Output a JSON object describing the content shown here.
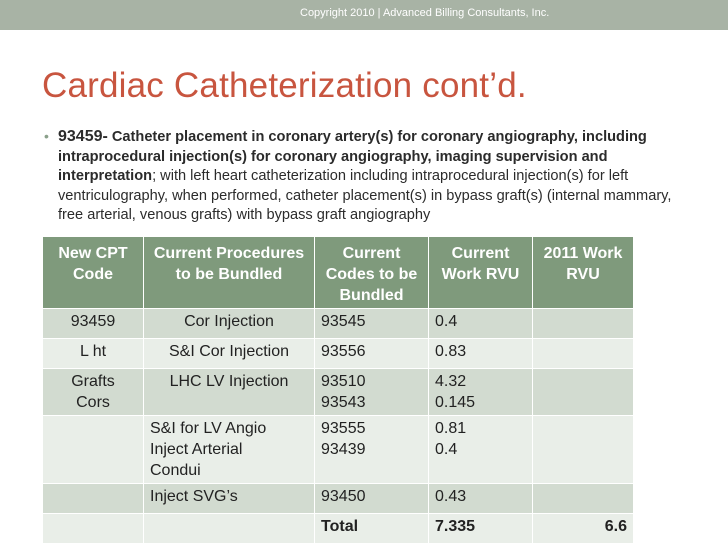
{
  "header": {
    "copyright": "Copyright 2010 | Advanced Billing Consultants, Inc."
  },
  "slide": {
    "title": "Cardiac Catheterization cont’d."
  },
  "bullet": {
    "code": "93459-",
    "bold_text": "Catheter placement in coronary artery(s) for coronary angiography, including intraprocedural injection(s) for coronary angiography, imaging supervision and interpretation",
    "normal_text": "; with left heart catheterization including intraprocedural injection(s) for left ventriculography, when performed, catheter placement(s) in bypass graft(s) (internal mammary, free arterial, venous grafts) with bypass graft angiography"
  },
  "table": {
    "headers": [
      "New CPT Code",
      "Current Procedures to be Bundled",
      "Current Codes to be Bundled",
      "Current Work RVU",
      "2011 Work RVU"
    ],
    "rows": [
      [
        "93459",
        "Cor Injection",
        "93545",
        "0.4",
        ""
      ],
      [
        "L ht",
        "S&I Cor Injection",
        "93556",
        "0.83",
        ""
      ],
      [
        "Grafts\nCors",
        "LHC LV Injection",
        "93510\n93543",
        "4.32\n0.145",
        ""
      ],
      [
        "",
        "S&I for LV Angio\nInject Arterial\nCondui",
        "93555\n93439",
        "0.81\n0.4",
        ""
      ],
      [
        "",
        "Inject SVG’s",
        "93450",
        "0.43",
        ""
      ],
      [
        "",
        "",
        "Total",
        "7.335",
        "6.6"
      ]
    ]
  },
  "colors": {
    "title": "#c8553f",
    "header_fill": "#7f9a7c",
    "row_dark": "#d2dbd0",
    "row_light": "#e9eee8",
    "topbar": "#a8b3a5"
  }
}
